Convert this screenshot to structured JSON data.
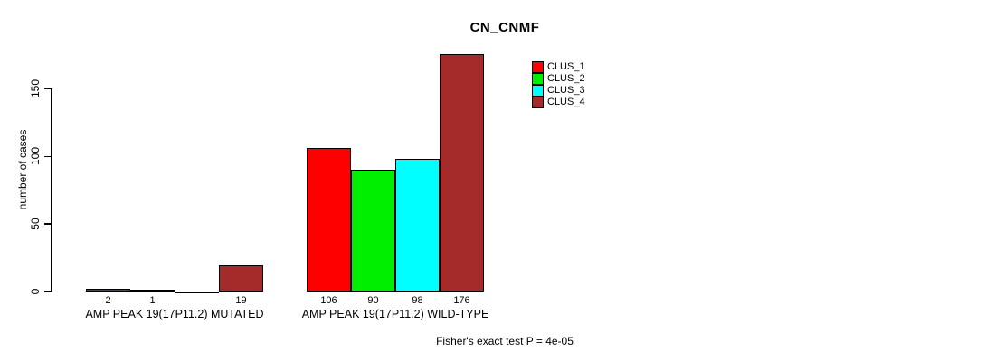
{
  "chart_data": {
    "type": "bar",
    "title": "CN_CNMF",
    "ylabel": "number of cases",
    "xlabel": "",
    "yticks": [
      0,
      50,
      100,
      150
    ],
    "ylim": [
      0,
      180
    ],
    "grid": false,
    "legend_position": "top-right",
    "series": [
      {
        "name": "CLUS_1",
        "color": "#FF0000"
      },
      {
        "name": "CLUS_2",
        "color": "#00EE00"
      },
      {
        "name": "CLUS_3",
        "color": "#00FFFF"
      },
      {
        "name": "CLUS_4",
        "color": "#A52A2A"
      }
    ],
    "groups": [
      {
        "label": "AMP PEAK 19(17P11.2) MUTATED",
        "values": [
          2,
          1,
          0,
          19
        ],
        "bar_labels": [
          "2",
          "1",
          "",
          "19"
        ]
      },
      {
        "label": "AMP PEAK 19(17P11.2) WILD-TYPE",
        "values": [
          106,
          90,
          98,
          176
        ],
        "bar_labels": [
          "106",
          "90",
          "98",
          "176"
        ]
      }
    ],
    "annotation": "Fisher's exact test P = 4e-05",
    "axis_color": "#000000",
    "background_color": "#FFFFFF"
  }
}
